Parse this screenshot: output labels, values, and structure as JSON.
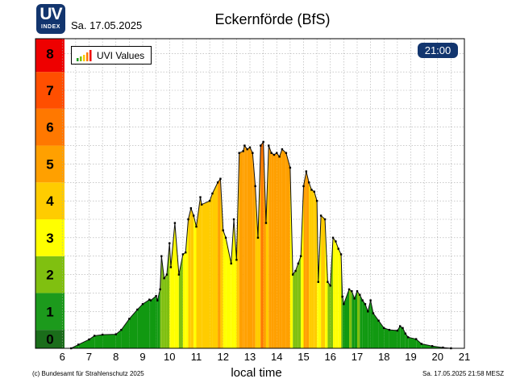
{
  "header": {
    "logo_top": "UV",
    "logo_bottom": "INDEX",
    "date": "Sa. 17.05.2025",
    "station_title": "Eckernförde (BfS)"
  },
  "badge": {
    "time": "21:00"
  },
  "legend": {
    "label": "UVI Values"
  },
  "footer": {
    "copyright": "(c) Bundesamt für Strahlenschutz 2025",
    "timestamp": "Sa. 17.05.2025  21:58  MESZ"
  },
  "colors": {
    "uvi_scale": [
      "#1a6d1a",
      "#1c9a1c",
      "#80c010",
      "#ffff00",
      "#ffcc00",
      "#ffa000",
      "#ff7800",
      "#ff4f00",
      "#ee0000"
    ],
    "fill_low": "#119911"
  },
  "chart_data": {
    "type": "area",
    "xlabel": "local time",
    "ylabel": "",
    "xlim": [
      5,
      21
    ],
    "ylim": [
      0,
      8.4
    ],
    "x_ticks": [
      "6",
      "7",
      "8",
      "9",
      "10",
      "11",
      "12",
      "13",
      "14",
      "15",
      "16",
      "17",
      "18",
      "19",
      "20",
      "21"
    ],
    "y_band_labels": [
      "0",
      "1",
      "2",
      "3",
      "4",
      "5",
      "6",
      "7",
      "8"
    ],
    "grid": true,
    "legend_position": "top-left",
    "series": [
      {
        "name": "UVI Values",
        "points": [
          [
            6.33,
            0.0
          ],
          [
            6.6,
            0.1
          ],
          [
            7.0,
            0.24
          ],
          [
            7.2,
            0.34
          ],
          [
            7.5,
            0.37
          ],
          [
            8.0,
            0.38
          ],
          [
            8.2,
            0.5
          ],
          [
            8.5,
            0.8
          ],
          [
            8.8,
            1.05
          ],
          [
            9.0,
            1.2
          ],
          [
            9.25,
            1.32
          ],
          [
            9.3,
            1.3
          ],
          [
            9.5,
            1.42
          ],
          [
            9.55,
            1.3
          ],
          [
            9.65,
            1.6
          ],
          [
            9.7,
            2.5
          ],
          [
            9.8,
            1.9
          ],
          [
            9.9,
            2.0
          ],
          [
            10.0,
            2.85
          ],
          [
            10.05,
            2.2
          ],
          [
            10.2,
            3.4
          ],
          [
            10.35,
            2.0
          ],
          [
            10.5,
            2.55
          ],
          [
            10.6,
            2.6
          ],
          [
            10.7,
            3.5
          ],
          [
            10.8,
            3.8
          ],
          [
            10.9,
            3.6
          ],
          [
            11.0,
            3.3
          ],
          [
            11.15,
            4.1
          ],
          [
            11.2,
            3.9
          ],
          [
            11.5,
            4.0
          ],
          [
            11.6,
            4.2
          ],
          [
            11.8,
            4.5
          ],
          [
            11.9,
            4.6
          ],
          [
            12.0,
            3.2
          ],
          [
            12.1,
            3.0
          ],
          [
            12.3,
            2.3
          ],
          [
            12.4,
            3.5
          ],
          [
            12.5,
            2.4
          ],
          [
            12.6,
            5.3
          ],
          [
            12.75,
            5.35
          ],
          [
            12.8,
            5.5
          ],
          [
            12.9,
            5.4
          ],
          [
            13.0,
            5.45
          ],
          [
            13.1,
            5.3
          ],
          [
            13.2,
            4.4
          ],
          [
            13.3,
            3.0
          ],
          [
            13.4,
            5.5
          ],
          [
            13.5,
            5.6
          ],
          [
            13.6,
            3.4
          ],
          [
            13.7,
            5.5
          ],
          [
            13.8,
            5.3
          ],
          [
            13.9,
            5.25
          ],
          [
            14.0,
            5.3
          ],
          [
            14.1,
            5.2
          ],
          [
            14.2,
            5.4
          ],
          [
            14.35,
            5.3
          ],
          [
            14.5,
            4.9
          ],
          [
            14.6,
            2.0
          ],
          [
            14.7,
            2.1
          ],
          [
            14.8,
            2.3
          ],
          [
            14.9,
            2.5
          ],
          [
            15.0,
            4.4
          ],
          [
            15.1,
            4.8
          ],
          [
            15.2,
            4.5
          ],
          [
            15.3,
            4.3
          ],
          [
            15.4,
            4.25
          ],
          [
            15.5,
            4.0
          ],
          [
            15.55,
            1.8
          ],
          [
            15.65,
            3.6
          ],
          [
            15.8,
            3.5
          ],
          [
            15.9,
            1.8
          ],
          [
            16.0,
            1.7
          ],
          [
            16.1,
            3.0
          ],
          [
            16.2,
            2.9
          ],
          [
            16.3,
            2.7
          ],
          [
            16.4,
            2.55
          ],
          [
            16.45,
            1.4
          ],
          [
            16.5,
            1.2
          ],
          [
            16.7,
            1.6
          ],
          [
            16.8,
            1.55
          ],
          [
            16.9,
            1.35
          ],
          [
            17.0,
            1.55
          ],
          [
            17.1,
            1.45
          ],
          [
            17.2,
            1.3
          ],
          [
            17.3,
            1.2
          ],
          [
            17.4,
            1.0
          ],
          [
            17.5,
            1.3
          ],
          [
            17.6,
            0.95
          ],
          [
            17.8,
            0.75
          ],
          [
            18.0,
            0.55
          ],
          [
            18.2,
            0.5
          ],
          [
            18.5,
            0.48
          ],
          [
            18.6,
            0.6
          ],
          [
            18.7,
            0.55
          ],
          [
            18.8,
            0.4
          ],
          [
            18.9,
            0.3
          ],
          [
            19.2,
            0.25
          ],
          [
            19.4,
            0.12
          ],
          [
            19.8,
            0.06
          ],
          [
            20.2,
            0.02
          ],
          [
            20.5,
            0.0
          ]
        ]
      }
    ]
  }
}
